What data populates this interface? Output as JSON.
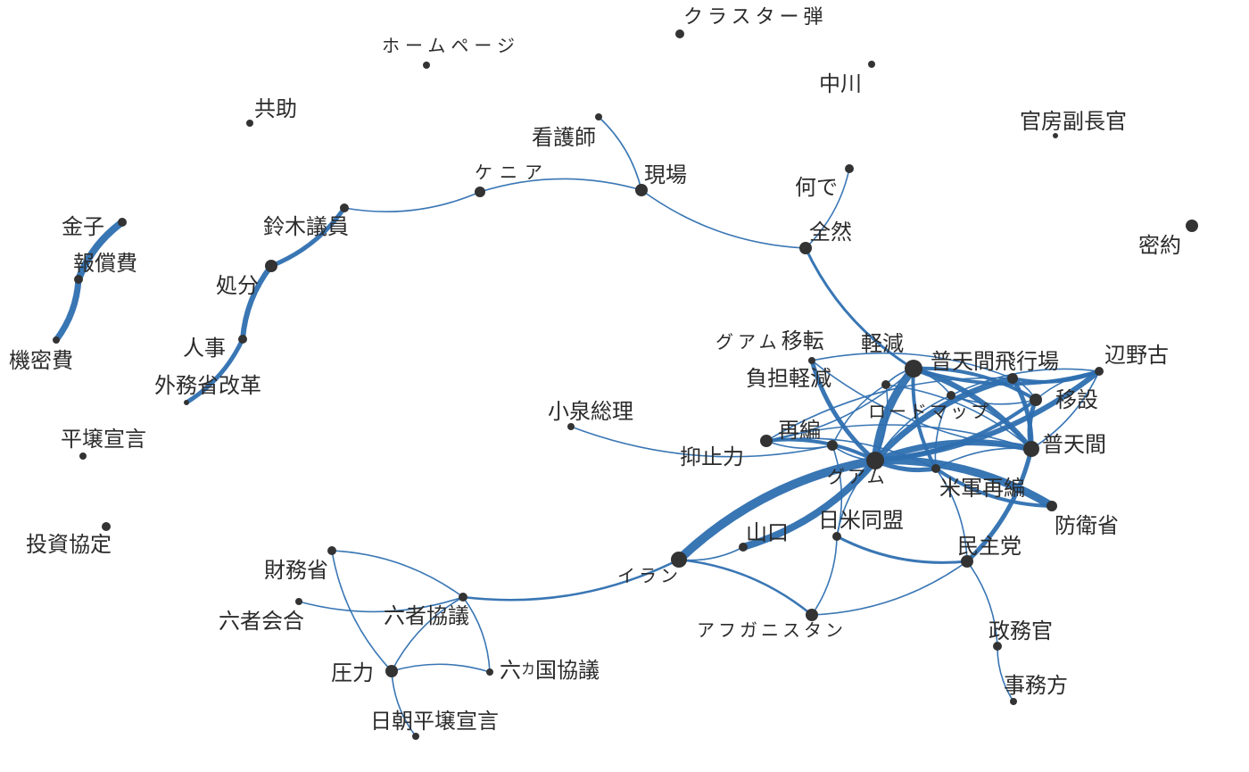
{
  "graph": {
    "edge_color": "#2e6fb0",
    "node_color": "#333333",
    "nodes": [
      {
        "id": "cluster_bomb",
        "label": "クラスター弾"
      },
      {
        "id": "homepage",
        "label": "ホームページ"
      },
      {
        "id": "nakagawa",
        "label": "中川"
      },
      {
        "id": "kyojo",
        "label": "共助"
      },
      {
        "id": "kanbo",
        "label": "官房副長官"
      },
      {
        "id": "kangoshi",
        "label": "看護師"
      },
      {
        "id": "genba",
        "label": "現場"
      },
      {
        "id": "kenya",
        "label": "ケニア"
      },
      {
        "id": "nande",
        "label": "何で"
      },
      {
        "id": "zenzen",
        "label": "全然"
      },
      {
        "id": "mitsuyaku",
        "label": "密約"
      },
      {
        "id": "kaneko",
        "label": "金子"
      },
      {
        "id": "hoshohi",
        "label": "報償費"
      },
      {
        "id": "kimitsuhi",
        "label": "機密費"
      },
      {
        "id": "suzuki",
        "label": "鈴木議員"
      },
      {
        "id": "shobun",
        "label": "処分"
      },
      {
        "id": "jinji",
        "label": "人事"
      },
      {
        "id": "gaimu_kaikaku",
        "label": "外務省改革"
      },
      {
        "id": "heijo1",
        "label": "平壌宣言"
      },
      {
        "id": "toshi",
        "label": "投資協定"
      },
      {
        "id": "guam_iten",
        "label": "グアム移転"
      },
      {
        "id": "keigen",
        "label": "軽減"
      },
      {
        "id": "futenma_airfield",
        "label": "普天間飛行場"
      },
      {
        "id": "henoko",
        "label": "辺野古"
      },
      {
        "id": "futan_keigen",
        "label": "負担軽減"
      },
      {
        "id": "roadmap",
        "label": "ロードマップ"
      },
      {
        "id": "isetsu",
        "label": "移設"
      },
      {
        "id": "koizumi",
        "label": "小泉総理"
      },
      {
        "id": "saihen",
        "label": "再編"
      },
      {
        "id": "yokushi",
        "label": "抑止力"
      },
      {
        "id": "guam",
        "label": "グアム"
      },
      {
        "id": "futenma",
        "label": "普天間"
      },
      {
        "id": "beigun",
        "label": "米軍再編"
      },
      {
        "id": "boei",
        "label": "防衛省"
      },
      {
        "id": "nichibei",
        "label": "日米同盟"
      },
      {
        "id": "yamaguchi",
        "label": "山口"
      },
      {
        "id": "minshuto",
        "label": "民主党"
      },
      {
        "id": "zaimu",
        "label": "財務省"
      },
      {
        "id": "iran",
        "label": "イラン"
      },
      {
        "id": "rokusha_kaigo",
        "label": "六者会合"
      },
      {
        "id": "rokusha_kyogi",
        "label": "六者協議"
      },
      {
        "id": "afghan",
        "label": "アフガニスタン"
      },
      {
        "id": "seimukan",
        "label": "政務官"
      },
      {
        "id": "atsuryoku",
        "label": "圧力"
      },
      {
        "id": "rokka",
        "label": "六カ国協議"
      },
      {
        "id": "jimukata",
        "label": "事務方"
      },
      {
        "id": "nitcho",
        "label": "日朝平壌宣言"
      }
    ],
    "edges": [
      [
        "kangoshi",
        "genba"
      ],
      [
        "genba",
        "kenya"
      ],
      [
        "kenya",
        "suzuki"
      ],
      [
        "genba",
        "zenzen"
      ],
      [
        "nande",
        "zenzen"
      ],
      [
        "zenzen",
        "keigen"
      ],
      [
        "suzuki",
        "shobun"
      ],
      [
        "shobun",
        "jinji"
      ],
      [
        "jinji",
        "gaimu_kaikaku"
      ],
      [
        "kaneko",
        "hoshohi"
      ],
      [
        "hoshohi",
        "kimitsuhi"
      ],
      [
        "keigen",
        "guam"
      ],
      [
        "keigen",
        "futenma"
      ],
      [
        "keigen",
        "henoko"
      ],
      [
        "keigen",
        "isetsu"
      ],
      [
        "keigen",
        "beigun"
      ],
      [
        "keigen",
        "saihen"
      ],
      [
        "keigen",
        "futan_keigen"
      ],
      [
        "keigen",
        "roadmap"
      ],
      [
        "guam_iten",
        "guam"
      ],
      [
        "guam_iten",
        "futenma_airfield"
      ],
      [
        "guam_iten",
        "futenma"
      ],
      [
        "futan_keigen",
        "guam"
      ],
      [
        "futan_keigen",
        "yokushi"
      ],
      [
        "futan_keigen",
        "futenma"
      ],
      [
        "futenma_airfield",
        "guam"
      ],
      [
        "futenma_airfield",
        "isetsu"
      ],
      [
        "futenma_airfield",
        "henoko"
      ],
      [
        "futenma_airfield",
        "futenma"
      ],
      [
        "futenma_airfield",
        "saihen"
      ],
      [
        "henoko",
        "guam"
      ],
      [
        "henoko",
        "isetsu"
      ],
      [
        "henoko",
        "futenma"
      ],
      [
        "henoko",
        "roadmap"
      ],
      [
        "isetsu",
        "guam"
      ],
      [
        "isetsu",
        "futenma"
      ],
      [
        "isetsu",
        "roadmap"
      ],
      [
        "roadmap",
        "guam"
      ],
      [
        "roadmap",
        "futenma"
      ],
      [
        "roadmap",
        "beigun"
      ],
      [
        "guam",
        "futenma"
      ],
      [
        "guam",
        "beigun"
      ],
      [
        "guam",
        "boei"
      ],
      [
        "guam",
        "saihen"
      ],
      [
        "guam",
        "yokushi"
      ],
      [
        "guam",
        "iran"
      ],
      [
        "guam",
        "yamaguchi"
      ],
      [
        "guam",
        "nichibei"
      ],
      [
        "saihen",
        "futenma"
      ],
      [
        "saihen",
        "yokushi"
      ],
      [
        "saihen",
        "beigun"
      ],
      [
        "koizumi",
        "yokushi"
      ],
      [
        "yokushi",
        "nichibei"
      ],
      [
        "futenma",
        "beigun"
      ],
      [
        "futenma",
        "minshuto"
      ],
      [
        "beigun",
        "boei"
      ],
      [
        "beigun",
        "minshuto"
      ],
      [
        "nichibei",
        "minshuto"
      ],
      [
        "nichibei",
        "afghan"
      ],
      [
        "iran",
        "yamaguchi"
      ],
      [
        "iran",
        "afghan"
      ],
      [
        "afghan",
        "minshuto"
      ],
      [
        "iran",
        "rokusha_kyogi"
      ],
      [
        "rokusha_kyogi",
        "zaimu"
      ],
      [
        "rokusha_kyogi",
        "rokusha_kaigo"
      ],
      [
        "rokusha_kyogi",
        "atsuryoku"
      ],
      [
        "rokusha_kyogi",
        "rokka"
      ],
      [
        "zaimu",
        "atsuryoku"
      ],
      [
        "atsuryoku",
        "rokka"
      ],
      [
        "atsuryoku",
        "nitcho"
      ],
      [
        "minshuto",
        "seimukan"
      ],
      [
        "seimukan",
        "jimukata"
      ]
    ]
  }
}
